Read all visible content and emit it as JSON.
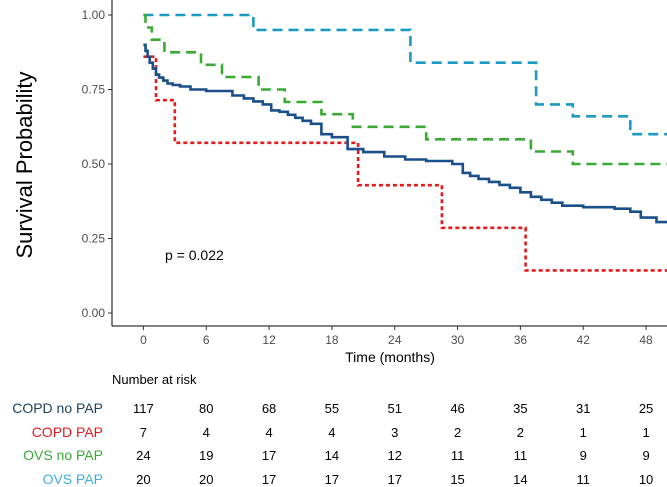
{
  "chart_data": {
    "type": "line",
    "ylabel": "Survival Probability",
    "xlabel": "Time (months)",
    "xlim": [
      -3,
      50
    ],
    "ylim": [
      0,
      1
    ],
    "x_ticks": [
      0,
      6,
      12,
      18,
      24,
      30,
      36,
      42,
      48
    ],
    "y_ticks": [
      0,
      0.25,
      0.5,
      0.75,
      1.0
    ],
    "y_tick_labels": [
      "0.00",
      "0.25",
      "0.50",
      "0.75",
      "1.00"
    ],
    "annotation": "p = 0.022",
    "risk_table_title": "Number at risk",
    "series": [
      {
        "name": "COPD no PAP",
        "color": "#1a4f8a",
        "style": "solid",
        "x": [
          0,
          0.2,
          0.4,
          0.6,
          0.9,
          1.2,
          1.5,
          1.9,
          2.3,
          2.8,
          3.5,
          4.5,
          6,
          8.5,
          9.6,
          10.5,
          11.4,
          12.2,
          13,
          13.8,
          14.5,
          15.2,
          16,
          17,
          18,
          19.5,
          21,
          23,
          25,
          27,
          29.5,
          30.5,
          31.2,
          32,
          33,
          34,
          35,
          36,
          37,
          38,
          39,
          40,
          42,
          45,
          46.5,
          47.5,
          49,
          50
        ],
        "y": [
          0.9,
          0.88,
          0.86,
          0.84,
          0.82,
          0.8,
          0.79,
          0.78,
          0.77,
          0.765,
          0.76,
          0.75,
          0.745,
          0.73,
          0.72,
          0.71,
          0.7,
          0.68,
          0.675,
          0.665,
          0.655,
          0.645,
          0.635,
          0.6,
          0.59,
          0.55,
          0.54,
          0.525,
          0.515,
          0.51,
          0.5,
          0.47,
          0.46,
          0.45,
          0.44,
          0.43,
          0.42,
          0.405,
          0.39,
          0.38,
          0.37,
          0.36,
          0.355,
          0.35,
          0.34,
          0.32,
          0.305,
          0.305
        ]
      },
      {
        "name": "COPD PAP",
        "color": "#e41a1c",
        "style": "dotted",
        "x": [
          0,
          0.3,
          1.2,
          3,
          9.4,
          20.5,
          28.5,
          36.5,
          50
        ],
        "y": [
          0.86,
          0.86,
          0.714,
          0.571,
          0.571,
          0.429,
          0.286,
          0.143,
          0.143
        ]
      },
      {
        "name": "OVS no PAP",
        "color": "#3aaa35",
        "style": "dashed",
        "x": [
          0,
          0.2,
          0.8,
          2,
          5.5,
          7.5,
          11,
          13.5,
          17,
          20,
          27,
          37,
          41,
          50
        ],
        "y": [
          1.0,
          0.958,
          0.917,
          0.875,
          0.833,
          0.792,
          0.75,
          0.708,
          0.667,
          0.625,
          0.583,
          0.542,
          0.5,
          0.5
        ]
      },
      {
        "name": "OVS PAP",
        "color": "#1a9bc4",
        "style": "dashed",
        "x": [
          0,
          10.5,
          25.5,
          37.5,
          41,
          46.5,
          50
        ],
        "y": [
          1.0,
          0.95,
          0.84,
          0.7,
          0.66,
          0.6,
          0.6
        ]
      }
    ]
  },
  "risk_table": {
    "times": [
      0,
      6,
      12,
      18,
      24,
      30,
      36,
      42,
      48
    ],
    "rows": [
      {
        "label": "COPD no PAP",
        "color": "#1a3f5c",
        "values": [
          "117",
          "80",
          "68",
          "55",
          "51",
          "46",
          "35",
          "31",
          "25"
        ]
      },
      {
        "label": "COPD PAP",
        "color": "#e41a1c",
        "values": [
          "7",
          "4",
          "4",
          "4",
          "3",
          "2",
          "2",
          "1",
          "1"
        ]
      },
      {
        "label": "OVS no PAP",
        "color": "#3aaa35",
        "values": [
          "24",
          "19",
          "17",
          "14",
          "12",
          "11",
          "11",
          "9",
          "9"
        ]
      },
      {
        "label": "OVS PAP",
        "color": "#3bb0de",
        "values": [
          "20",
          "20",
          "17",
          "17",
          "17",
          "15",
          "14",
          "11",
          "10"
        ]
      }
    ]
  }
}
